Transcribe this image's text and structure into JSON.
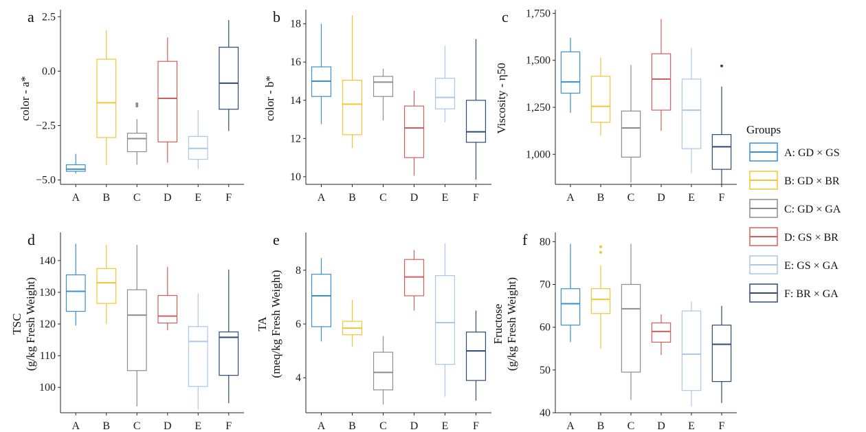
{
  "groups": [
    {
      "key": "A",
      "label": "A: GD × GS",
      "color": "#3a8fd0"
    },
    {
      "key": "B",
      "label": "B: GD × BR",
      "color": "#f2c531"
    },
    {
      "key": "C",
      "label": "C: GD × GA",
      "color": "#8c8c8c"
    },
    {
      "key": "D",
      "label": "D: GS × BR",
      "color": "#d65c5c"
    },
    {
      "key": "E",
      "label": "E: GS × GA",
      "color": "#a9c7e6"
    },
    {
      "key": "F",
      "label": "F: BR × GA",
      "color": "#2c4a73"
    }
  ],
  "legend": {
    "title": "Groups"
  },
  "chart_data": [
    {
      "type": "box",
      "panel": "a",
      "ylabel": [
        "color - a*"
      ],
      "categories": [
        "A",
        "B",
        "C",
        "D",
        "E",
        "F"
      ],
      "ylim": [
        -5.2,
        2.7
      ],
      "yticks": [
        -5.0,
        -2.5,
        0.0,
        2.5
      ],
      "yfmt": "1dp",
      "tick_labels": [
        "−5.0",
        "−2.5",
        "0.0",
        "2.5"
      ],
      "boxes": [
        {
          "min": -4.7,
          "q1": -4.6,
          "median": -4.5,
          "q3": -4.3,
          "max": -3.8,
          "outliers": []
        },
        {
          "min": -4.3,
          "q1": -3.05,
          "median": -1.45,
          "q3": 0.55,
          "max": 1.9,
          "outliers": []
        },
        {
          "min": -4.3,
          "q1": -3.7,
          "median": -3.1,
          "q3": -2.85,
          "max": -2.2,
          "outliers": [
            -1.5,
            -1.6
          ]
        },
        {
          "min": -4.2,
          "q1": -3.25,
          "median": -1.25,
          "q3": 0.45,
          "max": 1.55,
          "outliers": []
        },
        {
          "min": -4.5,
          "q1": -4.05,
          "median": -3.55,
          "q3": -3.0,
          "max": -1.8,
          "outliers": []
        },
        {
          "min": -2.75,
          "q1": -1.75,
          "median": -0.55,
          "q3": 1.1,
          "max": 2.35,
          "outliers": []
        }
      ]
    },
    {
      "type": "box",
      "panel": "b",
      "ylabel": [
        "color - b*"
      ],
      "categories": [
        "A",
        "B",
        "C",
        "D",
        "E",
        "F"
      ],
      "ylim": [
        9.6,
        18.6
      ],
      "yticks": [
        10,
        12,
        14,
        16,
        18
      ],
      "yfmt": "int",
      "tick_labels": [
        "10",
        "12",
        "14",
        "16",
        "18"
      ],
      "boxes": [
        {
          "min": 12.75,
          "q1": 14.2,
          "median": 15.0,
          "q3": 15.75,
          "max": 18.0,
          "outliers": []
        },
        {
          "min": 11.5,
          "q1": 12.2,
          "median": 13.8,
          "q3": 15.05,
          "max": 18.45,
          "outliers": []
        },
        {
          "min": 12.95,
          "q1": 14.2,
          "median": 14.95,
          "q3": 15.25,
          "max": 15.65,
          "outliers": []
        },
        {
          "min": 10.05,
          "q1": 11.0,
          "median": 12.55,
          "q3": 13.7,
          "max": 14.5,
          "outliers": []
        },
        {
          "min": 12.85,
          "q1": 13.55,
          "median": 14.15,
          "q3": 15.15,
          "max": 16.85,
          "outliers": []
        },
        {
          "min": 9.85,
          "q1": 11.8,
          "median": 12.35,
          "q3": 14.0,
          "max": 17.2,
          "outliers": []
        }
      ]
    },
    {
      "type": "box",
      "panel": "c",
      "ylabel": [
        "Viscosity - η50"
      ],
      "categories": [
        "A",
        "B",
        "C",
        "D",
        "E",
        "F"
      ],
      "ylim": [
        840,
        1755
      ],
      "yticks": [
        1000,
        1250,
        1500,
        1750
      ],
      "yfmt": "comma",
      "tick_labels": [
        "1,000",
        "1,250",
        "1,500",
        "1,750"
      ],
      "boxes": [
        {
          "min": 1220,
          "q1": 1325,
          "median": 1385,
          "q3": 1545,
          "max": 1620,
          "outliers": []
        },
        {
          "min": 1100,
          "q1": 1170,
          "median": 1255,
          "q3": 1415,
          "max": 1515,
          "outliers": []
        },
        {
          "min": 850,
          "q1": 985,
          "median": 1140,
          "q3": 1230,
          "max": 1475,
          "outliers": []
        },
        {
          "min": 1125,
          "q1": 1235,
          "median": 1400,
          "q3": 1535,
          "max": 1720,
          "outliers": []
        },
        {
          "min": 900,
          "q1": 1030,
          "median": 1235,
          "q3": 1400,
          "max": 1565,
          "outliers": []
        },
        {
          "min": 840,
          "q1": 920,
          "median": 1040,
          "q3": 1105,
          "max": 1360,
          "outliers": [
            1470
          ]
        }
      ]
    },
    {
      "type": "box",
      "panel": "d",
      "ylabel": [
        "TSC",
        "(g/kg Fresh Weight)"
      ],
      "categories": [
        "A",
        "B",
        "C",
        "D",
        "E",
        "F"
      ],
      "ylim": [
        92,
        148
      ],
      "yticks": [
        100,
        110,
        120,
        130,
        140
      ],
      "yfmt": "int",
      "tick_labels": [
        "100",
        "110",
        "120",
        "130",
        "140"
      ],
      "boxes": [
        {
          "min": 119.5,
          "q1": 124.0,
          "median": 130.3,
          "q3": 135.5,
          "max": 145.3,
          "outliers": []
        },
        {
          "min": 120.0,
          "q1": 126.5,
          "median": 133.0,
          "q3": 137.5,
          "max": 145.0,
          "outliers": []
        },
        {
          "min": 94.0,
          "q1": 105.3,
          "median": 122.8,
          "q3": 130.8,
          "max": 145.0,
          "outliers": []
        },
        {
          "min": 118.0,
          "q1": 120.3,
          "median": 122.5,
          "q3": 129.0,
          "max": 138.0,
          "outliers": []
        },
        {
          "min": 93.0,
          "q1": 100.3,
          "median": 114.5,
          "q3": 119.2,
          "max": 129.7,
          "outliers": []
        },
        {
          "min": 95.0,
          "q1": 103.8,
          "median": 115.8,
          "q3": 117.5,
          "max": 137.2,
          "outliers": []
        }
      ]
    },
    {
      "type": "box",
      "panel": "e",
      "ylabel": [
        "TA",
        "(meq/kg Fresh Weight)"
      ],
      "categories": [
        "A",
        "B",
        "C",
        "D",
        "E",
        "F"
      ],
      "ylim": [
        2.7,
        9.3
      ],
      "yticks": [
        4,
        6,
        8
      ],
      "yfmt": "int",
      "tick_labels": [
        "4",
        "6",
        "8"
      ],
      "boxes": [
        {
          "min": 5.35,
          "q1": 5.9,
          "median": 7.05,
          "q3": 7.85,
          "max": 8.45,
          "outliers": []
        },
        {
          "min": 5.15,
          "q1": 5.6,
          "median": 5.85,
          "q3": 6.1,
          "max": 6.9,
          "outliers": []
        },
        {
          "min": 3.0,
          "q1": 3.55,
          "median": 4.2,
          "q3": 4.95,
          "max": 5.55,
          "outliers": []
        },
        {
          "min": 6.5,
          "q1": 7.05,
          "median": 7.75,
          "q3": 8.4,
          "max": 8.75,
          "outliers": []
        },
        {
          "min": 3.3,
          "q1": 4.5,
          "median": 6.05,
          "q3": 7.8,
          "max": 9.0,
          "outliers": []
        },
        {
          "min": 3.15,
          "q1": 3.9,
          "median": 5.0,
          "q3": 5.7,
          "max": 6.5,
          "outliers": []
        }
      ]
    },
    {
      "type": "box",
      "panel": "f",
      "ylabel": [
        "Fructose",
        "(g/kg Fresh Weight)"
      ],
      "categories": [
        "A",
        "B",
        "C",
        "D",
        "E",
        "F"
      ],
      "ylim": [
        40,
        81.5
      ],
      "yticks": [
        40,
        50,
        60,
        70,
        80
      ],
      "yfmt": "int",
      "tick_labels": [
        "40",
        "50",
        "60",
        "70",
        "80"
      ],
      "boxes": [
        {
          "min": 56.5,
          "q1": 60.5,
          "median": 65.5,
          "q3": 69.0,
          "max": 79.5,
          "outliers": []
        },
        {
          "min": 55.0,
          "q1": 63.2,
          "median": 66.5,
          "q3": 69.0,
          "max": 74.5,
          "outliers": [
            77.5,
            78.8
          ]
        },
        {
          "min": 43.0,
          "q1": 49.5,
          "median": 64.3,
          "q3": 70.0,
          "max": 79.5,
          "outliers": []
        },
        {
          "min": 53.5,
          "q1": 56.5,
          "median": 59.0,
          "q3": 61.0,
          "max": 63.0,
          "outliers": []
        },
        {
          "min": 41.5,
          "q1": 45.2,
          "median": 53.7,
          "q3": 63.8,
          "max": 66.0,
          "outliers": []
        },
        {
          "min": 42.3,
          "q1": 47.3,
          "median": 56.0,
          "q3": 60.5,
          "max": 65.0,
          "outliers": []
        }
      ]
    }
  ]
}
